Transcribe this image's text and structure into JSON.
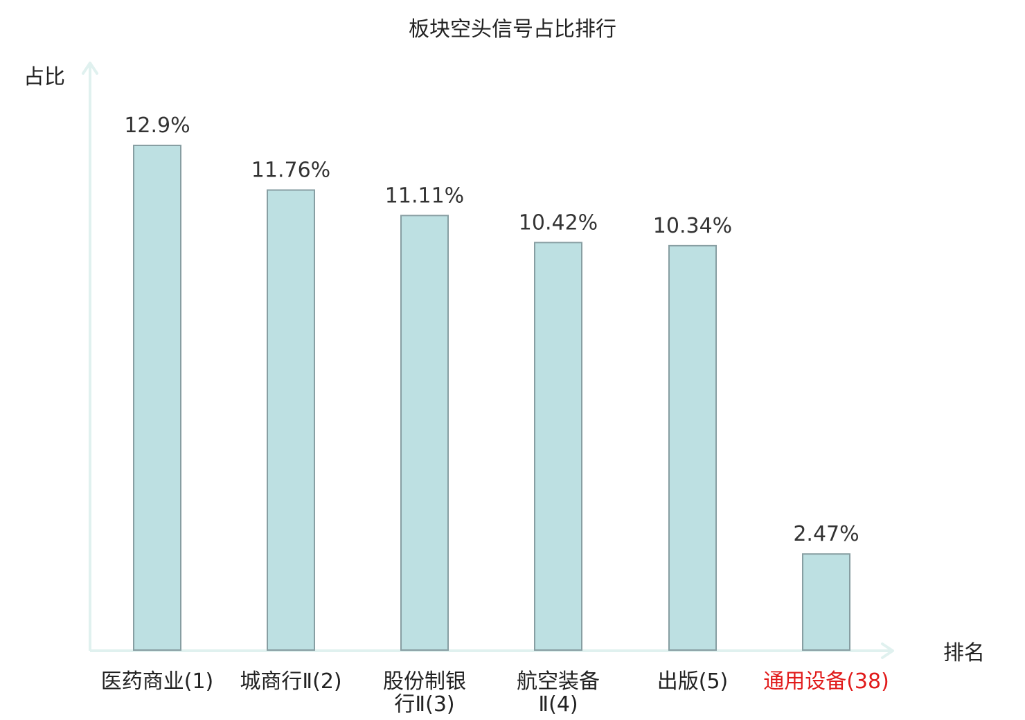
{
  "chart_data": {
    "type": "bar",
    "title": "板块空头信号占比排行",
    "xlabel": "排名",
    "ylabel": "占比",
    "ylim": [
      0,
      16
    ],
    "grid": false,
    "colors": {
      "bar_fill": "#bde0e2",
      "bar_stroke": "#879ea2",
      "axis": "#e0f1ef",
      "text": "#333333",
      "highlight_text": "#e11b1b"
    },
    "categories": [
      "医药商业(1)",
      "城商行Ⅱ(2)",
      "股份制银行Ⅱ(3)",
      "航空装备Ⅱ(4)",
      "出版(5)",
      "通用设备(38)"
    ],
    "category_lines": [
      [
        "医药商业(1)"
      ],
      [
        "城商行Ⅱ(2)"
      ],
      [
        "股份制银",
        "行Ⅱ(3)"
      ],
      [
        "航空装备",
        "Ⅱ(4)"
      ],
      [
        "出版(5)"
      ],
      [
        "通用设备(38)"
      ]
    ],
    "highlight": [
      false,
      false,
      false,
      false,
      false,
      true
    ],
    "values": [
      12.9,
      11.76,
      11.11,
      10.42,
      10.34,
      2.47
    ],
    "value_labels": [
      "12.9%",
      "11.76%",
      "11.11%",
      "10.42%",
      "10.34%",
      "2.47%"
    ]
  }
}
